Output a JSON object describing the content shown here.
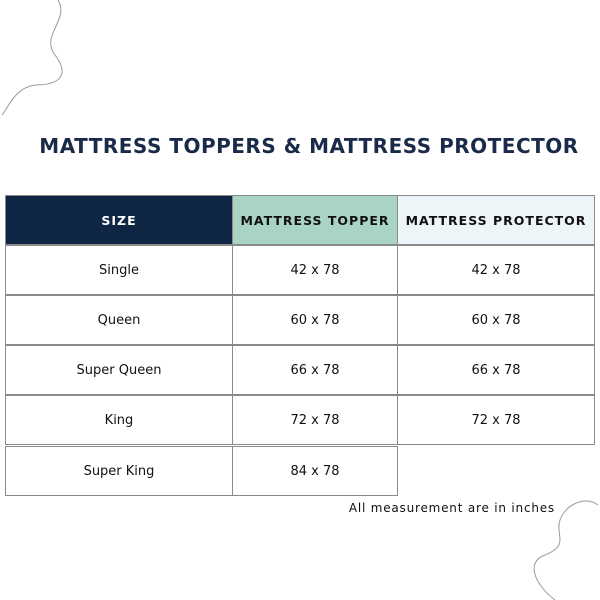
{
  "header": {
    "title": "MATTRESS TOPPERS & MATTRESS PROTECTOR"
  },
  "table": {
    "columns": [
      "SIZE",
      "MATTRESS TOPPER",
      "MATTRESS PROTECTOR"
    ],
    "rows": [
      [
        "Single",
        "42 x 78",
        "42 x 78"
      ],
      [
        "Queen",
        "60 x 78",
        "60 x 78"
      ],
      [
        "Super Queen",
        "66 x 78",
        "66 x 78"
      ],
      [
        "King",
        "72 x 78",
        "72 x 78"
      ],
      [
        "Super King",
        "84 x 78"
      ]
    ]
  },
  "footnote": "All measurement are in inches"
}
